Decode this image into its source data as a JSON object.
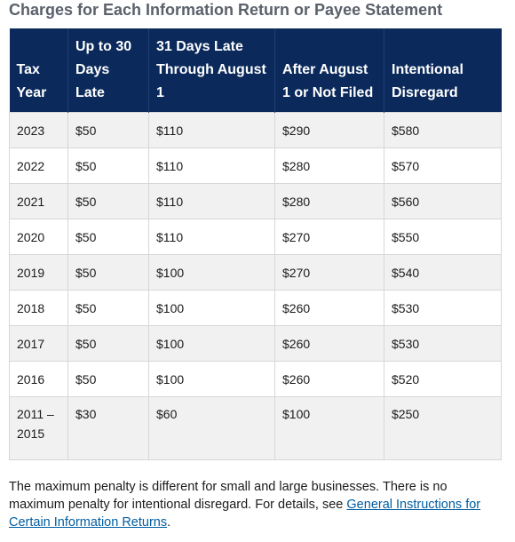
{
  "title": "Charges for Each Information Return or Payee Statement",
  "table": {
    "headers": [
      "Tax Year",
      "Up to 30 Days Late",
      "31 Days Late Through August 1",
      "After August 1 or Not Filed",
      "Intentional Disregard"
    ],
    "rows": [
      [
        "2023",
        "$50",
        "$110",
        "$290",
        "$580"
      ],
      [
        "2022",
        "$50",
        "$110",
        "$280",
        "$570"
      ],
      [
        "2021",
        "$50",
        "$110",
        "$280",
        "$560"
      ],
      [
        "2020",
        "$50",
        "$110",
        "$270",
        "$550"
      ],
      [
        "2019",
        "$50",
        "$100",
        "$270",
        "$540"
      ],
      [
        "2018",
        "$50",
        "$100",
        "$260",
        "$530"
      ],
      [
        "2017",
        "$50",
        "$100",
        "$260",
        "$530"
      ],
      [
        "2016",
        "$50",
        "$100",
        "$260",
        "$520"
      ],
      [
        "2011 – 2015",
        "$30",
        "$60",
        "$100",
        "$250"
      ]
    ]
  },
  "note": {
    "text": "The maximum penalty is different for small and large businesses. There is no maximum penalty for intentional disregard. For details, see ",
    "link": "General Instructions for Certain Information Returns",
    "end": "."
  }
}
